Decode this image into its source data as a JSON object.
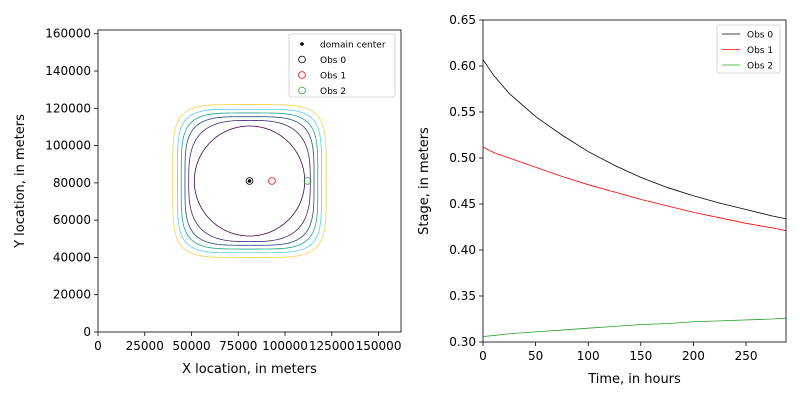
{
  "chart_data": [
    {
      "type": "contour",
      "xlabel": "X location, in meters",
      "ylabel": "Y location, in meters",
      "xlim": [
        0,
        162000
      ],
      "ylim": [
        0,
        162000
      ],
      "xticks": [
        0,
        25000,
        50000,
        75000,
        100000,
        125000,
        150000
      ],
      "yticks": [
        0,
        20000,
        40000,
        60000,
        80000,
        100000,
        120000,
        140000,
        160000
      ],
      "legend": {
        "location": "upper right",
        "entries": [
          {
            "label": "domain center",
            "marker": "dot",
            "color": "#000000"
          },
          {
            "label": "Obs 0",
            "marker": "circle",
            "color": "#000000"
          },
          {
            "label": "Obs 1",
            "marker": "circle",
            "color": "#ff0000"
          },
          {
            "label": "Obs 2",
            "marker": "circle",
            "color": "#2ca02c"
          }
        ]
      },
      "domain_center": {
        "x": 81000,
        "y": 81000
      },
      "points": [
        {
          "name": "Obs 0",
          "x": 81000,
          "y": 81000,
          "color": "#000000"
        },
        {
          "name": "Obs 1",
          "x": 93000,
          "y": 81000,
          "color": "#ff0000"
        },
        {
          "name": "Obs 2",
          "x": 112000,
          "y": 81000,
          "color": "#2ca02c"
        }
      ],
      "contours": [
        {
          "halfwidth": 29500,
          "power": 2.0,
          "color": "#440154"
        },
        {
          "halfwidth": 32500,
          "power": 3.0,
          "color": "#3b2a6e"
        },
        {
          "halfwidth": 34500,
          "power": 4.0,
          "color": "#2c4a8c"
        },
        {
          "halfwidth": 36500,
          "power": 4.5,
          "color": "#21a18a"
        },
        {
          "halfwidth": 38500,
          "power": 5.0,
          "color": "#5ccfe6"
        },
        {
          "halfwidth": 41000,
          "power": 5.0,
          "color": "#f2d44b"
        }
      ]
    },
    {
      "type": "line",
      "xlabel": "Time, in hours",
      "ylabel": "Stage, in meters",
      "xlim": [
        0,
        288
      ],
      "ylim": [
        0.3,
        0.65
      ],
      "xticks": [
        0,
        50,
        100,
        150,
        200,
        250
      ],
      "yticks": [
        0.3,
        0.35,
        0.4,
        0.45,
        0.5,
        0.55,
        0.6,
        0.65
      ],
      "legend": {
        "location": "upper right"
      },
      "series": [
        {
          "name": "Obs 0",
          "color": "#000000",
          "x": [
            0,
            10,
            25,
            50,
            75,
            100,
            125,
            150,
            175,
            200,
            225,
            250,
            275,
            288
          ],
          "y": [
            0.607,
            0.59,
            0.57,
            0.545,
            0.525,
            0.507,
            0.492,
            0.479,
            0.468,
            0.459,
            0.451,
            0.444,
            0.437,
            0.434
          ]
        },
        {
          "name": "Obs 1",
          "color": "#ff0000",
          "x": [
            0,
            10,
            25,
            50,
            75,
            100,
            125,
            150,
            175,
            200,
            225,
            250,
            275,
            288
          ],
          "y": [
            0.512,
            0.506,
            0.5,
            0.49,
            0.48,
            0.471,
            0.463,
            0.455,
            0.448,
            0.441,
            0.435,
            0.429,
            0.424,
            0.421
          ]
        },
        {
          "name": "Obs 2",
          "color": "#2ca02c",
          "x": [
            0,
            10,
            25,
            50,
            75,
            100,
            125,
            150,
            175,
            200,
            225,
            250,
            275,
            288
          ],
          "y": [
            0.306,
            0.307,
            0.309,
            0.311,
            0.313,
            0.315,
            0.317,
            0.319,
            0.32,
            0.322,
            0.323,
            0.324,
            0.325,
            0.326
          ]
        }
      ]
    }
  ]
}
